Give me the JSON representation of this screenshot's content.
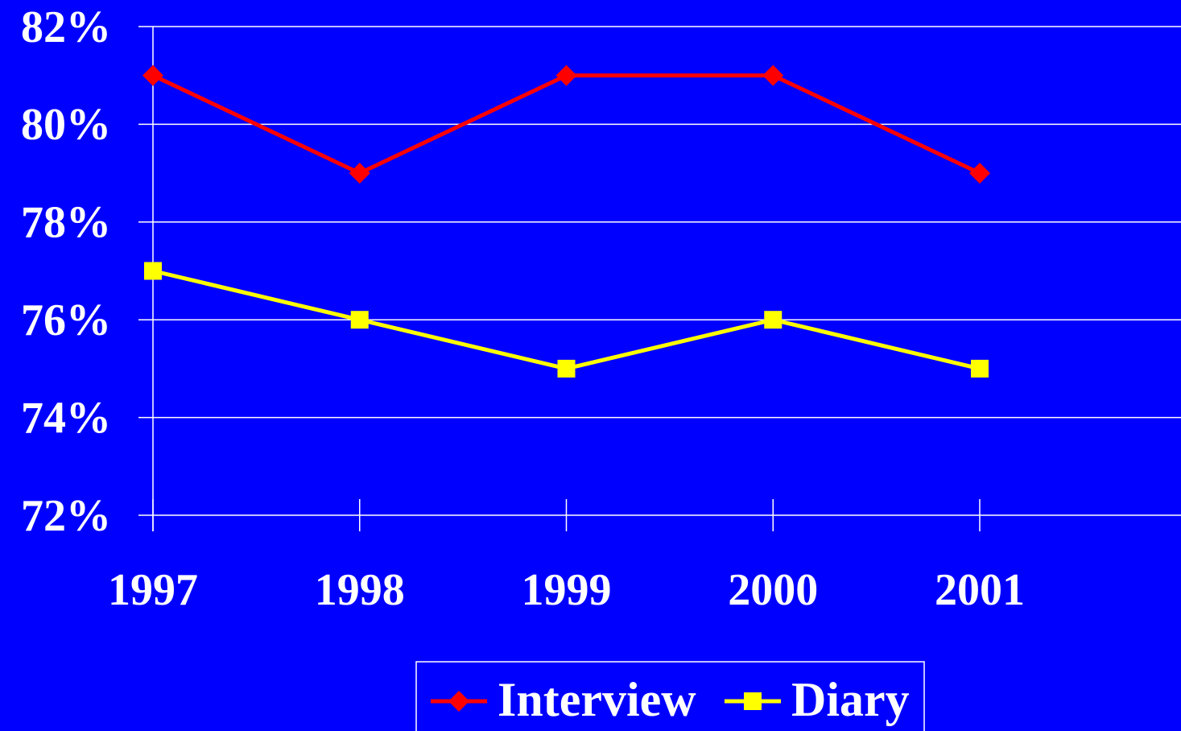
{
  "chart_data": {
    "type": "line",
    "categories": [
      "1997",
      "1998",
      "1999",
      "2000",
      "2001"
    ],
    "series": [
      {
        "name": "Interview",
        "color": "#ff0000",
        "marker": "diamond",
        "values": [
          81,
          79,
          81,
          81,
          79
        ]
      },
      {
        "name": "Diary",
        "color": "#ffff00",
        "marker": "square",
        "values": [
          77,
          76,
          75,
          76,
          75
        ]
      }
    ],
    "ylim": [
      72,
      82
    ],
    "yticks": [
      {
        "value": 72,
        "label": "72%"
      },
      {
        "value": 74,
        "label": "74%"
      },
      {
        "value": 76,
        "label": "76%"
      },
      {
        "value": 78,
        "label": "78%"
      },
      {
        "value": 80,
        "label": "80%"
      },
      {
        "value": 82,
        "label": "82%"
      }
    ],
    "grid": true,
    "legend": "bottom",
    "background": "#0000ff"
  }
}
